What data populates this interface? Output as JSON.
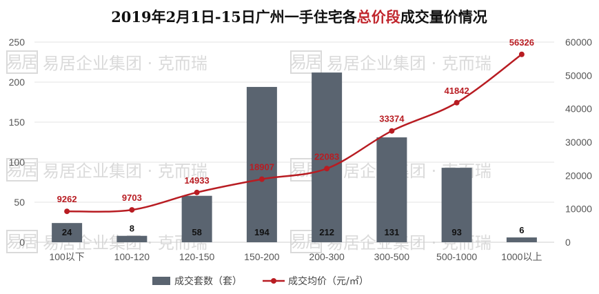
{
  "chart_data": {
    "type": "bar",
    "title_parts": [
      "2019年2月1日-15日广州一手住宅各",
      "总价段",
      "成交量价情况"
    ],
    "categories": [
      "100以下",
      "100-120",
      "120-150",
      "150-200",
      "200-300",
      "300-500",
      "500-1000",
      "1000以上"
    ],
    "series": [
      {
        "name": "成交套数（套）",
        "type": "bar",
        "axis": "left",
        "values": [
          24,
          8,
          58,
          194,
          212,
          131,
          93,
          6
        ]
      },
      {
        "name": "成交均价（元/㎡）",
        "type": "line",
        "axis": "right",
        "values": [
          9262,
          9703,
          14933,
          18907,
          22083,
          33374,
          41842,
          56326
        ]
      }
    ],
    "y_left": {
      "min": 0,
      "max": 250,
      "ticks": [
        0,
        50,
        100,
        150,
        200,
        250
      ]
    },
    "y_right": {
      "min": 0,
      "max": 60000,
      "ticks": [
        0,
        10000,
        20000,
        30000,
        40000,
        50000,
        60000
      ]
    },
    "grid": true,
    "legend_position": "bottom",
    "colors": {
      "bar": "#5a6470",
      "line": "#b81c22",
      "title_highlight": "#c0262d",
      "grid": "#e3e3e3"
    }
  },
  "watermark": {
    "logo_chars": [
      "易",
      "居"
    ],
    "text": "易居企业集团 · 克而瑞"
  }
}
